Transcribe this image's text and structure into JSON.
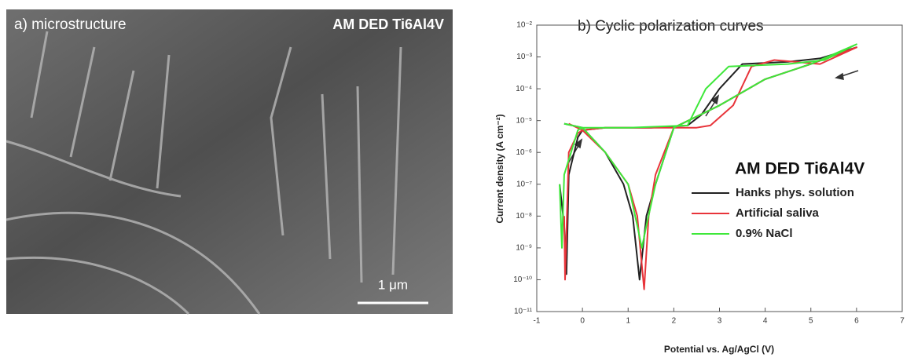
{
  "panel_a": {
    "label": "a) microstructure",
    "title": "AM DED Ti6Al4V",
    "scale_bar": "1 μm"
  },
  "chart_data": {
    "type": "line",
    "title": "b) Cyclic polarization curves",
    "xlabel": "Potential vs. Ag/AgCl (V)",
    "ylabel": "Current density (A cm⁻²)",
    "legend_title": "AM DED Ti6Al4V",
    "log_y": true,
    "xlim": [
      -1,
      7
    ],
    "xticks": [
      -1,
      0,
      1,
      2,
      3,
      4,
      5,
      6,
      7
    ],
    "ylim": [
      1e-11,
      0.01
    ],
    "yticks": [
      {
        "value": 1e-11,
        "label": "10⁻¹¹"
      },
      {
        "value": 1e-10,
        "label": "10⁻¹⁰"
      },
      {
        "value": 1e-09,
        "label": "10⁻⁹"
      },
      {
        "value": 1e-08,
        "label": "10⁻⁸"
      },
      {
        "value": 1e-07,
        "label": "10⁻⁷"
      },
      {
        "value": 1e-06,
        "label": "10⁻⁶"
      },
      {
        "value": 1e-05,
        "label": "10⁻⁵"
      },
      {
        "value": 0.0001,
        "label": "10⁻⁴"
      },
      {
        "value": 0.001,
        "label": "10⁻³"
      },
      {
        "value": 0.01,
        "label": "10⁻²"
      }
    ],
    "series": [
      {
        "name": "Hanks phys. solution",
        "color": "#222222",
        "x": [
          -0.5,
          -0.4,
          -0.35,
          -0.3,
          -0.1,
          0.0,
          0.5,
          1.5,
          2.3,
          2.6,
          3.0,
          3.5,
          4.5,
          5.2,
          6.0,
          5.0,
          4.0,
          3.0,
          2.0,
          1.6,
          1.4,
          1.25,
          1.1,
          0.9,
          0.5,
          0.0,
          -0.4
        ],
        "values": [
          1e-07,
          5e-09,
          1.5e-10,
          2e-07,
          3e-06,
          5e-06,
          6e-06,
          6e-06,
          7e-06,
          1.5e-05,
          0.0001,
          0.0006,
          0.0007,
          0.0009,
          0.002,
          0.0006,
          0.0002,
          3e-05,
          6e-06,
          1e-07,
          1e-08,
          1e-10,
          1e-08,
          1e-07,
          1e-06,
          6e-06,
          8e-06
        ]
      },
      {
        "name": "Artificial saliva",
        "color": "#e8343a",
        "x": [
          -0.4,
          -0.38,
          -0.3,
          -0.1,
          0.0,
          0.5,
          1.5,
          2.5,
          2.8,
          3.3,
          3.7,
          4.2,
          5.2,
          6.0,
          5.0,
          4.0,
          3.0,
          2.0,
          1.6,
          1.45,
          1.35,
          1.2,
          1.0,
          0.5,
          0.0,
          -0.3
        ],
        "values": [
          1e-08,
          1e-10,
          1e-06,
          4e-06,
          5e-06,
          6e-06,
          6e-06,
          6e-06,
          7e-06,
          3e-05,
          0.0005,
          0.0008,
          0.0006,
          0.002,
          0.0006,
          0.0002,
          3e-05,
          6e-06,
          2e-07,
          1e-08,
          5e-11,
          1e-08,
          1e-07,
          1e-06,
          5e-06,
          8e-06
        ]
      },
      {
        "name": "0.9% NaCl",
        "color": "#3ee83a",
        "x": [
          -0.5,
          -0.45,
          -0.4,
          -0.1,
          0.0,
          1.0,
          2.3,
          2.7,
          3.2,
          4.5,
          5.3,
          6.0,
          5.0,
          4.0,
          3.0,
          2.0,
          1.6,
          1.4,
          1.3,
          1.2,
          1.0,
          0.5,
          0.0,
          -0.4
        ],
        "values": [
          1e-07,
          1e-09,
          2e-07,
          5e-06,
          6e-06,
          6e-06,
          7e-06,
          0.0001,
          0.0005,
          0.0006,
          0.0008,
          0.0025,
          0.0006,
          0.0002,
          3e-05,
          6e-06,
          1e-07,
          5e-09,
          1e-09,
          5e-09,
          1e-07,
          1e-06,
          6e-06,
          8e-06
        ]
      }
    ]
  }
}
